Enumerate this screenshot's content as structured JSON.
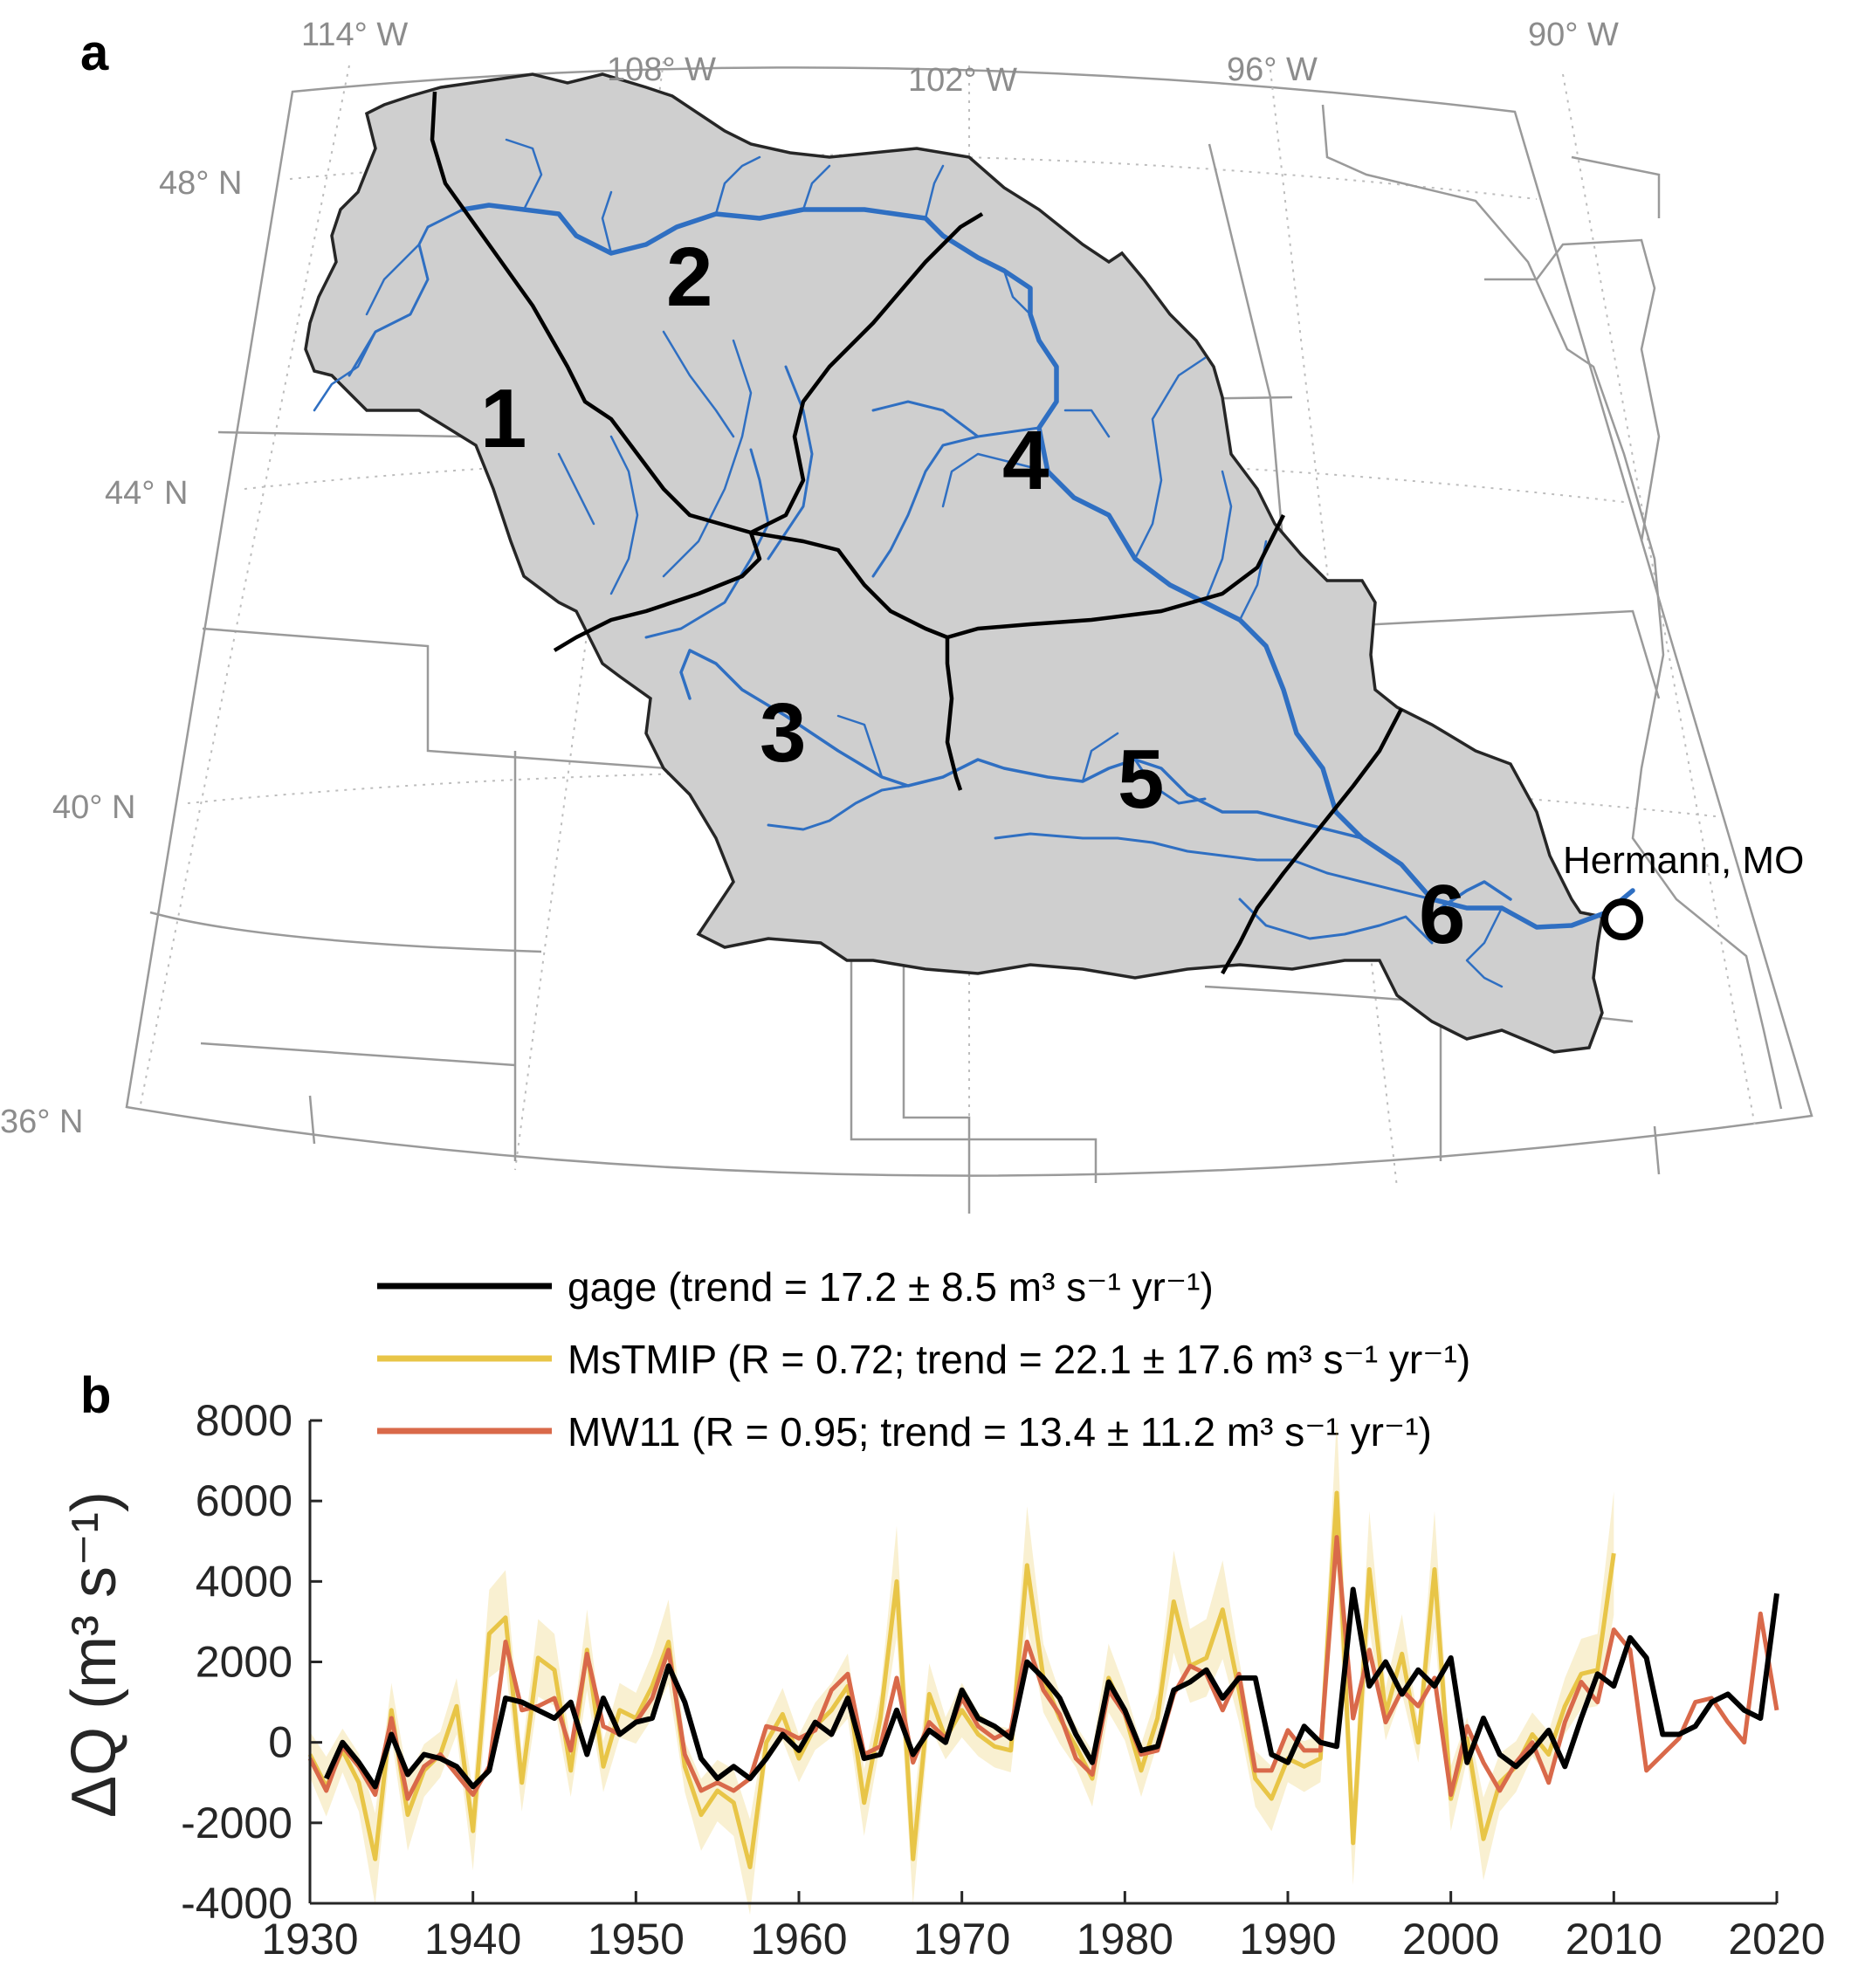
{
  "panel_a": {
    "label": "a",
    "graticule": {
      "lon_labels": [
        "114° W",
        "108° W",
        "102° W",
        "96° W",
        "90° W"
      ],
      "lat_labels": [
        "48° N",
        "44° N",
        "40° N",
        "36° N"
      ]
    },
    "regions": [
      "1",
      "2",
      "3",
      "4",
      "5",
      "6"
    ],
    "gage_station": "Hermann, MO",
    "colors": {
      "basin_fill": "#cfcfcf",
      "rivers": "#2f6fc2",
      "boundaries": "#000000",
      "state_lines": "#9a9a9a"
    }
  },
  "panel_b": {
    "label": "b",
    "legend": [
      {
        "text": "gage (trend = 17.2 ± 8.5 m³ s⁻¹ yr⁻¹)",
        "color": "#000000"
      },
      {
        "text": "MsTMIP (R = 0.72; trend = 22.1 ± 17.6 m³ s⁻¹ yr⁻¹)",
        "color": "#e8c547"
      },
      {
        "text": "MW11 (R = 0.95; trend = 13.4 ± 11.2 m³ s⁻¹ yr⁻¹)",
        "color": "#d9694a"
      }
    ],
    "ylabel": "ΔQ (m³ s⁻¹)"
  },
  "chart_data": {
    "type": "line",
    "ylabel": "ΔQ (m³ s⁻¹)",
    "xlim": [
      1930,
      2020
    ],
    "ylim": [
      -4000,
      8000
    ],
    "xticks": [
      1930,
      1940,
      1950,
      1960,
      1970,
      1980,
      1990,
      2000,
      2010,
      2020
    ],
    "yticks": [
      -4000,
      -2000,
      0,
      2000,
      4000,
      6000,
      8000
    ],
    "grid": false,
    "legend_position": "top",
    "series": [
      {
        "name": "gage",
        "color": "#000000",
        "x_start": 1931,
        "values": [
          -900,
          0,
          -500,
          -1100,
          200,
          -800,
          -300,
          -400,
          -600,
          -1100,
          -700,
          1100,
          1000,
          800,
          600,
          1000,
          -300,
          1100,
          200,
          500,
          600,
          1900,
          1000,
          -400,
          -900,
          -600,
          -900,
          -400,
          200,
          -200,
          500,
          200,
          1100,
          -400,
          -300,
          800,
          -300,
          300,
          0,
          1300,
          600,
          400,
          100,
          2000,
          1600,
          1100,
          200,
          -500,
          1500,
          800,
          -200,
          -100,
          1300,
          1500,
          1800,
          1100,
          1600,
          1600,
          -300,
          -500,
          400,
          0,
          -100,
          3800,
          1400,
          2000,
          1200,
          1800,
          1400,
          2100,
          -500,
          600,
          -300,
          -600,
          -200,
          300,
          -600,
          600,
          1700,
          1400,
          2600,
          2100,
          200,
          200,
          400,
          1000,
          1200,
          800,
          600,
          3700
        ]
      },
      {
        "name": "MsTMIP",
        "color": "#e8c547",
        "x_start": 1930,
        "values": [
          -300,
          -1100,
          -200,
          -1000,
          -2900,
          800,
          -1800,
          -700,
          -300,
          900,
          -2200,
          2700,
          3100,
          -1000,
          2100,
          1800,
          -700,
          2300,
          -600,
          800,
          600,
          1400,
          2500,
          -600,
          -1800,
          -1200,
          -1500,
          -3100,
          0,
          700,
          -400,
          400,
          800,
          1400,
          -1500,
          600,
          4000,
          -2900,
          1200,
          100,
          800,
          200,
          -100,
          -200,
          4400,
          1600,
          600,
          -100,
          -900,
          1600,
          700,
          -700,
          600,
          3500,
          1900,
          2100,
          3300,
          1300,
          -900,
          -1400,
          -400,
          -600,
          -400,
          6200,
          -2500,
          4300,
          700,
          2200,
          0,
          4300,
          -1400,
          100,
          -2400,
          -1000,
          -600,
          200,
          -300,
          900,
          1700,
          1800,
          4700
        ]
      },
      {
        "name": "MW11",
        "color": "#d9694a",
        "x_start": 1930,
        "values": [
          -400,
          -1200,
          -100,
          -600,
          -1300,
          600,
          -1400,
          -600,
          -300,
          -800,
          -1300,
          -600,
          2500,
          800,
          900,
          1100,
          -200,
          2200,
          400,
          200,
          500,
          1100,
          2300,
          -300,
          -1200,
          -1000,
          -1200,
          -900,
          400,
          300,
          100,
          300,
          1300,
          1700,
          -300,
          -100,
          1600,
          -500,
          500,
          100,
          1100,
          400,
          100,
          300,
          2500,
          1300,
          700,
          -400,
          -800,
          1300,
          700,
          -300,
          -200,
          1200,
          1900,
          1700,
          800,
          1700,
          -700,
          -700,
          300,
          -200,
          -200,
          5100,
          600,
          2300,
          500,
          1300,
          900,
          1600,
          -1300,
          400,
          -500,
          -1200,
          -500,
          0,
          -1000,
          500,
          1500,
          1000,
          2800,
          2300,
          -700,
          -300,
          100,
          1000,
          1100,
          500,
          0,
          3200,
          800
        ]
      }
    ]
  }
}
